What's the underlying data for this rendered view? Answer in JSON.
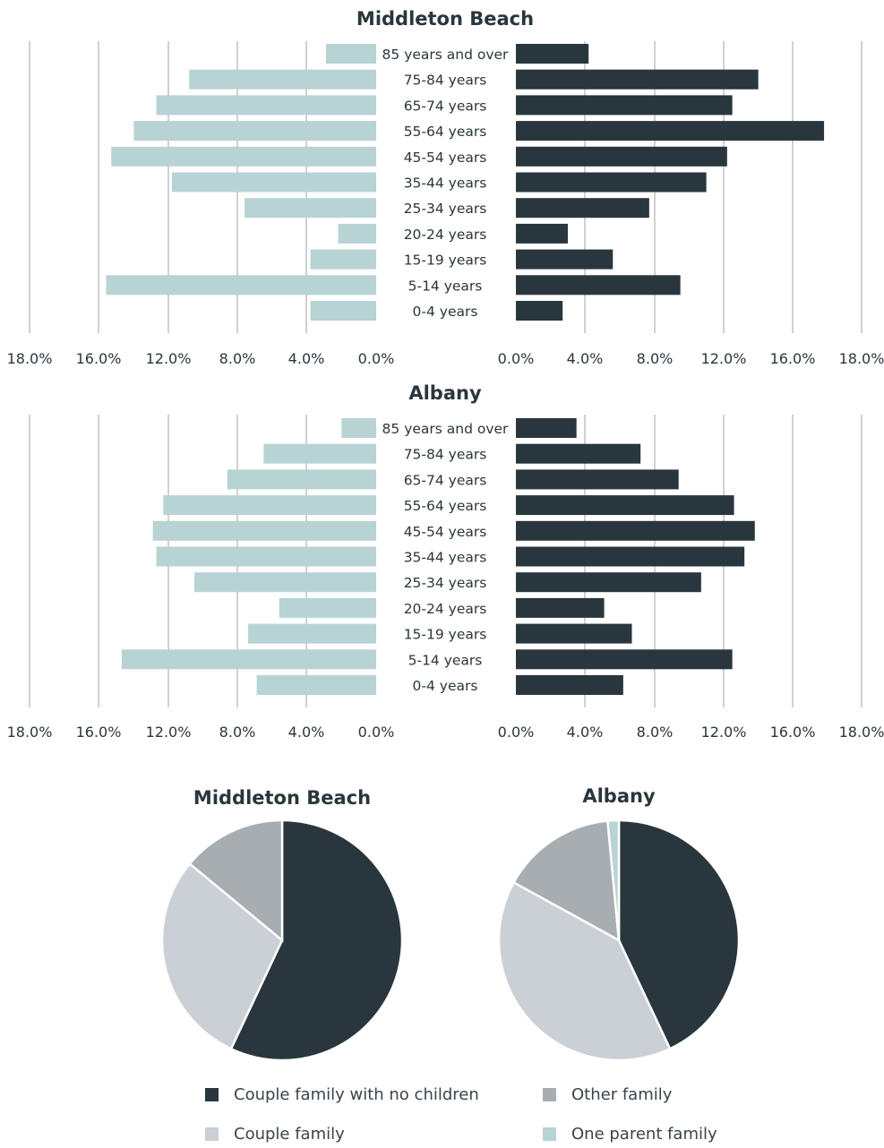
{
  "colors": {
    "female": "#b8d3d3",
    "male": "#29363d",
    "grid": "#9fa3a6",
    "text": "#2a363c",
    "pie_couple_no_children": "#29363d",
    "pie_couple_family": "#cbcfd6",
    "pie_other_family": "#a8adb2",
    "pie_one_parent": "#b8d3d3"
  },
  "chart_data": [
    {
      "type": "bar",
      "title": "Middleton Beach",
      "categories": [
        "85 years and over",
        "75-84 years",
        "65-74 years",
        "55-64 years",
        "45-54 years",
        "35-44 years",
        "25-34 years",
        "20-24 years",
        "15-19 years",
        "5-14 years",
        "0-4 years"
      ],
      "series": [
        {
          "side": "left",
          "values": [
            2.9,
            10.8,
            12.7,
            14.0,
            15.3,
            11.8,
            7.6,
            2.2,
            3.8,
            15.6,
            3.8
          ]
        },
        {
          "side": "right",
          "values": [
            4.2,
            14.0,
            12.5,
            17.8,
            12.2,
            11.0,
            7.7,
            3.0,
            5.6,
            9.5,
            2.7
          ]
        }
      ],
      "xlim": [
        0,
        18
      ],
      "tick_labels": [
        "18.0%",
        "16.0%",
        "12.0%",
        "8.0%",
        "4.0%",
        "0.0%"
      ],
      "tick_labels_right": [
        "0.0%",
        "4.0%",
        "8.0%",
        "12.0%",
        "16.0%",
        "18.0%"
      ],
      "grid": true
    },
    {
      "type": "bar",
      "title": "Albany",
      "categories": [
        "85 years and over",
        "75-84 years",
        "65-74 years",
        "55-64 years",
        "45-54 years",
        "35-44 years",
        "25-34 years",
        "20-24 years",
        "15-19 years",
        "5-14 years",
        "0-4 years"
      ],
      "series": [
        {
          "side": "left",
          "values": [
            2.0,
            6.5,
            8.6,
            12.3,
            12.9,
            12.7,
            10.5,
            5.6,
            7.4,
            14.7,
            6.9
          ]
        },
        {
          "side": "right",
          "values": [
            3.5,
            7.2,
            9.4,
            12.6,
            13.8,
            13.2,
            10.7,
            5.1,
            6.7,
            12.5,
            6.2
          ]
        }
      ],
      "xlim": [
        0,
        18
      ],
      "tick_labels": [
        "18.0%",
        "16.0%",
        "12.0%",
        "8.0%",
        "4.0%",
        "0.0%"
      ],
      "tick_labels_right": [
        "0.0%",
        "4.0%",
        "8.0%",
        "12.0%",
        "16.0%",
        "18.0%"
      ],
      "grid": true
    },
    {
      "type": "pie",
      "title": "Middleton Beach",
      "labels": [
        "Couple family with no children",
        "Couple family",
        "Other family",
        "One parent family"
      ],
      "values": [
        57,
        29,
        14,
        0
      ]
    },
    {
      "type": "pie",
      "title": "Albany",
      "labels": [
        "Couple family with no children",
        "Couple family",
        "Other family",
        "One parent family"
      ],
      "values": [
        43,
        40,
        15.5,
        1.5
      ]
    }
  ],
  "legend": {
    "items": [
      {
        "label": "Couple family with no children"
      },
      {
        "label": "Other family"
      },
      {
        "label": "Couple family"
      },
      {
        "label": "One parent family"
      }
    ]
  }
}
